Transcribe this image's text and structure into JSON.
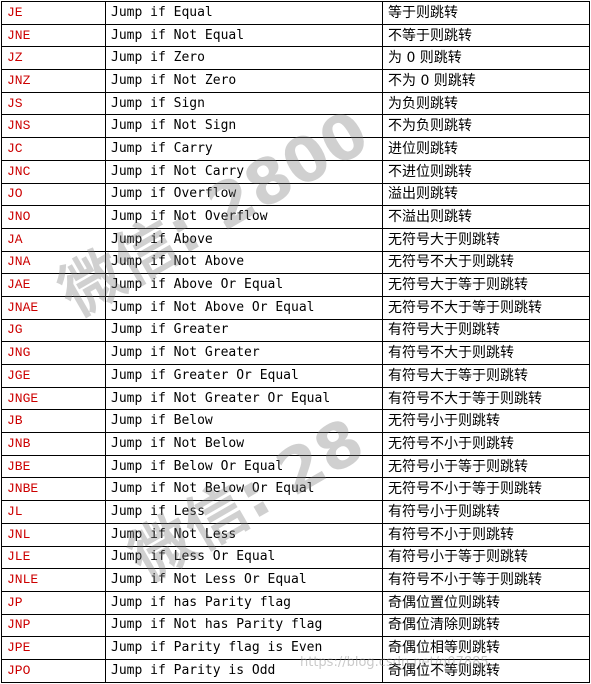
{
  "colors": {
    "mnemonic": "#cc0000",
    "text": "#000000",
    "grid": "#000000"
  },
  "rows": [
    {
      "mnemonic": "JE",
      "english": "Jump if Equal",
      "chinese": "等于则跳转"
    },
    {
      "mnemonic": "JNE",
      "english": "Jump if Not Equal",
      "chinese": "不等于则跳转"
    },
    {
      "mnemonic": "JZ",
      "english": "Jump if Zero",
      "chinese": "为 0 则跳转"
    },
    {
      "mnemonic": "JNZ",
      "english": "Jump if Not Zero",
      "chinese": "不为 0 则跳转"
    },
    {
      "mnemonic": "JS",
      "english": "Jump if Sign",
      "chinese": "为负则跳转"
    },
    {
      "mnemonic": "JNS",
      "english": "Jump if Not Sign",
      "chinese": "不为负则跳转"
    },
    {
      "mnemonic": "JC",
      "english": "Jump if Carry",
      "chinese": "进位则跳转"
    },
    {
      "mnemonic": "JNC",
      "english": "Jump if Not Carry",
      "chinese": "不进位则跳转"
    },
    {
      "mnemonic": "JO",
      "english": "Jump if Overflow",
      "chinese": "溢出则跳转"
    },
    {
      "mnemonic": "JNO",
      "english": "Jump if Not Overflow",
      "chinese": "不溢出则跳转"
    },
    {
      "mnemonic": "JA",
      "english": "Jump if Above",
      "chinese": "无符号大于则跳转"
    },
    {
      "mnemonic": "JNA",
      "english": "Jump if Not Above",
      "chinese": "无符号不大于则跳转"
    },
    {
      "mnemonic": "JAE",
      "english": "Jump if Above Or Equal",
      "chinese": "无符号大于等于则跳转"
    },
    {
      "mnemonic": "JNAE",
      "english": "Jump if Not Above Or Equal",
      "chinese": "无符号不大于等于则跳转"
    },
    {
      "mnemonic": "JG",
      "english": "Jump if Greater",
      "chinese": "有符号大于则跳转"
    },
    {
      "mnemonic": "JNG",
      "english": "Jump if Not Greater",
      "chinese": "有符号不大于则跳转"
    },
    {
      "mnemonic": "JGE",
      "english": "Jump if Greater Or Equal",
      "chinese": "有符号大于等于则跳转"
    },
    {
      "mnemonic": "JNGE",
      "english": "Jump if Not Greater Or Equal",
      "chinese": "有符号不大于等于则跳转"
    },
    {
      "mnemonic": "JB",
      "english": "Jump if Below",
      "chinese": "无符号小于则跳转"
    },
    {
      "mnemonic": "JNB",
      "english": "Jump if Not Below",
      "chinese": "无符号不小于则跳转"
    },
    {
      "mnemonic": "JBE",
      "english": "Jump if Below Or Equal",
      "chinese": "无符号小于等于则跳转"
    },
    {
      "mnemonic": "JNBE",
      "english": "Jump if Not Below Or Equal",
      "chinese": "无符号不小于等于则跳转"
    },
    {
      "mnemonic": "JL",
      "english": "Jump if Less",
      "chinese": "有符号小于则跳转"
    },
    {
      "mnemonic": "JNL",
      "english": "Jump if Not Less",
      "chinese": "有符号不小于则跳转"
    },
    {
      "mnemonic": "JLE",
      "english": "Jump if Less Or Equal",
      "chinese": "有符号小于等于则跳转"
    },
    {
      "mnemonic": "JNLE",
      "english": "Jump if Not Less Or Equal",
      "chinese": "有符号不小于等于则跳转"
    },
    {
      "mnemonic": "JP",
      "english": "Jump if has Parity flag",
      "chinese": "奇偶位置位则跳转"
    },
    {
      "mnemonic": "JNP",
      "english": "Jump if Not has Parity flag",
      "chinese": "奇偶位清除则跳转"
    },
    {
      "mnemonic": "JPE",
      "english": "Jump if Parity flag is Even",
      "chinese": "奇偶位相等则跳转"
    },
    {
      "mnemonic": "JPO",
      "english": "Jump if Parity is Odd",
      "chinese": "奇偶位不等则跳转"
    }
  ],
  "watermarks": {
    "primary": "微信: 2800",
    "secondary": "微信: 28",
    "url": "https://blog.csdn.net/q07885"
  }
}
